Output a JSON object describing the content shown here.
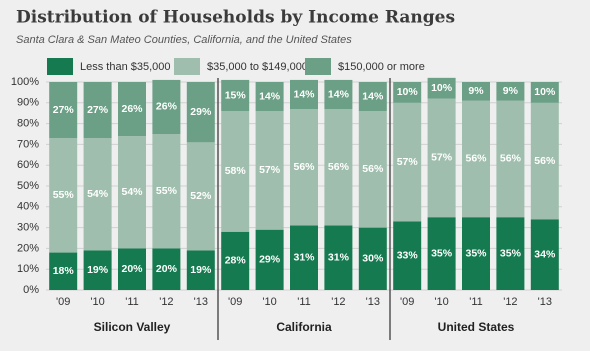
{
  "chart_data": {
    "type": "stacked_bar",
    "title": "Distribution of Households by Income Ranges",
    "subtitle": "Santa Clara & San Mateo Counties, California, and the United States",
    "groups": [
      {
        "name": "Silicon Valley",
        "categories": [
          "'09",
          "'10",
          "'11",
          "'12",
          "'13"
        ]
      },
      {
        "name": "California",
        "categories": [
          "'09",
          "'10",
          "'11",
          "'12",
          "'13"
        ]
      },
      {
        "name": "United States",
        "categories": [
          "'09",
          "'10",
          "'11",
          "'12",
          "'13"
        ]
      }
    ],
    "series": [
      {
        "name": "Less than $35,000",
        "color": "#167a50",
        "values": [
          18,
          19,
          20,
          20,
          19,
          28,
          29,
          31,
          31,
          30,
          33,
          35,
          35,
          35,
          34
        ],
        "value_labels": [
          "18%",
          "19%",
          "20%",
          "20%",
          "19%",
          "28%",
          "29%",
          "31%",
          "31%",
          "30%",
          "33%",
          "35%",
          "35%",
          "35%",
          "34%"
        ]
      },
      {
        "name": "$35,000 to $149,000",
        "color": "#9fbead",
        "values": [
          55,
          54,
          54,
          55,
          52,
          58,
          57,
          56,
          56,
          56,
          57,
          57,
          56,
          56,
          56
        ],
        "value_labels": [
          "55%",
          "54%",
          "54%",
          "55%",
          "52%",
          "58%",
          "57%",
          "56%",
          "56%",
          "56%",
          "57%",
          "57%",
          "56%",
          "56%",
          "56%"
        ]
      },
      {
        "name": "$150,000 or more",
        "color": "#6b9f86",
        "values": [
          27,
          27,
          26,
          26,
          29,
          15,
          14,
          14,
          14,
          14,
          10,
          10,
          9,
          9,
          10
        ],
        "value_labels": [
          "27%",
          "27%",
          "26%",
          "26%",
          "29%",
          "15%",
          "14%",
          "14%",
          "14%",
          "14%",
          "10%",
          "10%",
          "9%",
          "9%",
          "10%"
        ]
      }
    ],
    "ylim": [
      0,
      100
    ],
    "yticks": [
      {
        "value": 0,
        "label": "0%"
      },
      {
        "value": 10,
        "label": "10%"
      },
      {
        "value": 20,
        "label": "20%"
      },
      {
        "value": 30,
        "label": "30%"
      },
      {
        "value": 40,
        "label": "40%"
      },
      {
        "value": 50,
        "label": "50%"
      },
      {
        "value": 60,
        "label": "60%"
      },
      {
        "value": 70,
        "label": "70%"
      },
      {
        "value": 80,
        "label": "80%"
      },
      {
        "value": 90,
        "label": "90%"
      },
      {
        "value": 100,
        "label": "100%"
      }
    ],
    "grid": true
  }
}
